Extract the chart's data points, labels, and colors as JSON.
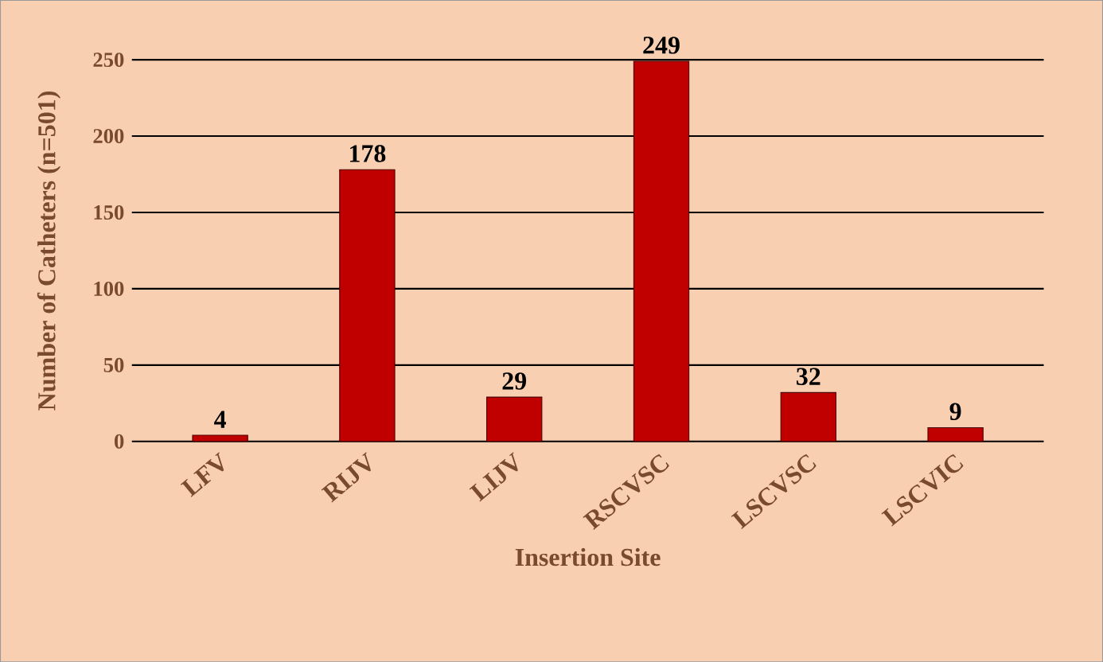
{
  "chart_data": {
    "type": "bar",
    "xlabel": "Insertion Site",
    "ylabel": "Number of Catheters (n=501)",
    "categories": [
      "LFV",
      "RIJV",
      "LIJV",
      "RSCVSC",
      "LSCVSC",
      "LSCVIC"
    ],
    "values": [
      4,
      178,
      29,
      249,
      32,
      9
    ],
    "color": "#c00000",
    "ylim": [
      0,
      250
    ],
    "yticks": [
      0,
      50,
      100,
      150,
      200,
      250
    ],
    "grid": "y",
    "data_labels": true
  }
}
